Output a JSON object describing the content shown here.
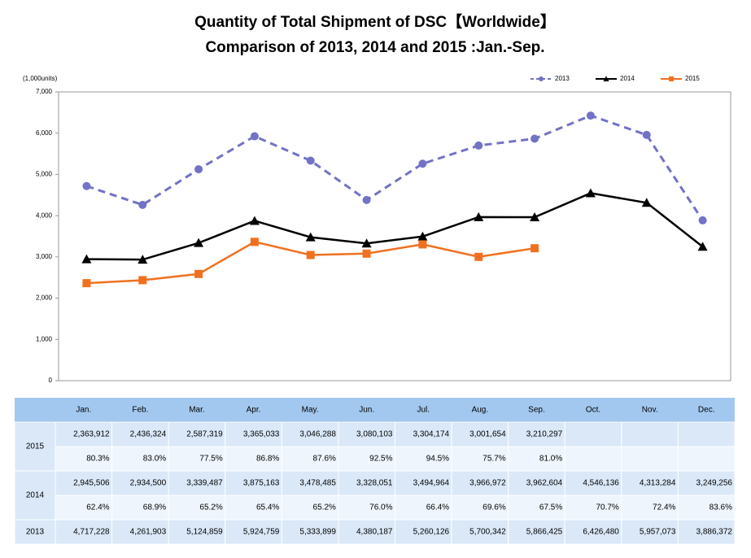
{
  "chart_data": {
    "type": "line",
    "title": "Quantity of Total Shipment of DSC【Worldwide】",
    "subtitle": "Comparison of 2013, 2014 and 2015 :Jan.-Sep.",
    "y_axis_label": "(1,000units)",
    "categories": [
      "Jan.",
      "Feb.",
      "Mar.",
      "Apr.",
      "May.",
      "Jun.",
      "Jul.",
      "Aug.",
      "Sep.",
      "Oct.",
      "Nov.",
      "Dec."
    ],
    "ylim": [
      0,
      7000
    ],
    "yticks": [
      0,
      {
        "value": 1000,
        "label": "1,000"
      },
      {
        "value": 2000,
        "label": "2,000"
      },
      {
        "value": 3000,
        "label": "3,000"
      },
      {
        "value": 4000,
        "label": "4,000"
      },
      {
        "value": 5000,
        "label": "5,000"
      },
      {
        "value": 6000,
        "label": "6,000"
      },
      {
        "value": 7000,
        "label": "7,000"
      }
    ],
    "grid": false,
    "legend": "top-right",
    "series": [
      {
        "name": "2013",
        "color": "#7272c6",
        "dashed": true,
        "marker": "circle",
        "values": [
          4717.228,
          4261.903,
          5124.859,
          5924.759,
          5333.899,
          4380.187,
          5260.126,
          5700.342,
          5866.425,
          6426.48,
          5957.073,
          3886.372
        ],
        "value_labels": [
          "4,717,228",
          "4,261,903",
          "5,124,859",
          "5,924,759",
          "5,333,899",
          "4,380,187",
          "5,260,126",
          "5,700,342",
          "5,866,425",
          "6,426,480",
          "5,957,073",
          "3,886,372"
        ]
      },
      {
        "name": "2014",
        "color": "#000000",
        "dashed": false,
        "marker": "triangle",
        "values": [
          2945.506,
          2934.5,
          3339.487,
          3875.163,
          3478.485,
          3328.051,
          3494.964,
          3966.972,
          3962.604,
          4546.136,
          4313.284,
          3249.256
        ],
        "value_labels": [
          "2,945,506",
          "2,934,500",
          "3,339,487",
          "3,875,163",
          "3,478,485",
          "3,328,051",
          "3,494,964",
          "3,966,972",
          "3,962,604",
          "4,546,136",
          "4,313,284",
          "3,249,256"
        ],
        "ratio_labels": [
          "62.4%",
          "68.9%",
          "65.2%",
          "65.4%",
          "65.2%",
          "76.0%",
          "66.4%",
          "69.6%",
          "67.5%",
          "70.7%",
          "72.4%",
          "83.6%"
        ]
      },
      {
        "name": "2015",
        "color": "#f07020",
        "dashed": false,
        "marker": "square",
        "values": [
          2363.912,
          2436.324,
          2587.319,
          3365.033,
          3046.288,
          3080.103,
          3304.174,
          3001.654,
          3210.297,
          null,
          null,
          null
        ],
        "value_labels": [
          "2,363,912",
          "2,436,324",
          "2,587,319",
          "3,365,033",
          "3,046,288",
          "3,080,103",
          "3,304,174",
          "3,001,654",
          "3,210,297",
          null,
          null,
          null
        ],
        "ratio_labels": [
          "80.3%",
          "83.0%",
          "77.5%",
          "86.8%",
          "87.6%",
          "92.5%",
          "94.5%",
          "75.7%",
          "81.0%",
          null,
          null,
          null
        ]
      }
    ]
  }
}
